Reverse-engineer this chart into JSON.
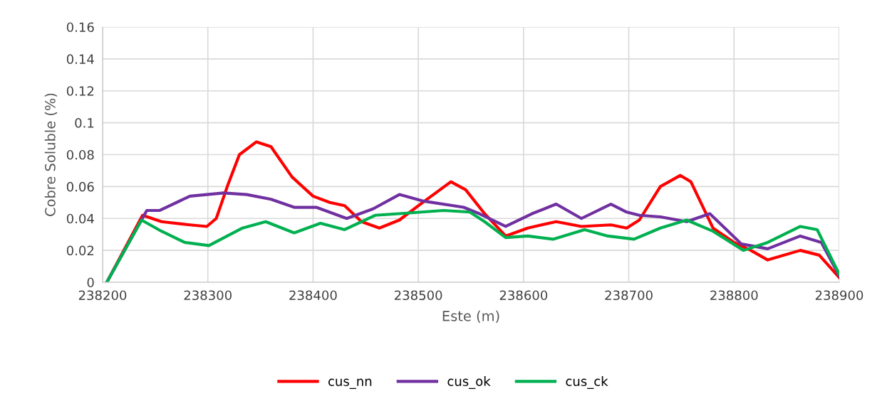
{
  "chart_data": {
    "type": "line",
    "xlabel": "Este (m)",
    "ylabel": "Cobre Soluble (%)",
    "xlim": [
      238200,
      238900
    ],
    "xticks": [
      238200,
      238300,
      238400,
      238500,
      238600,
      238700,
      238800,
      238900
    ],
    "ylim": [
      0,
      0.16
    ],
    "yticks": [
      0,
      0.02,
      0.04,
      0.06,
      0.08,
      0.1,
      0.12,
      0.14,
      0.16
    ],
    "grid": true,
    "legend": "bottom",
    "marker": "none",
    "line_style": "solid",
    "series": [
      {
        "name": "cus_nn",
        "color": "#ff0000",
        "x": [
          238204,
          238238,
          238256,
          238283,
          238299,
          238308,
          238319,
          238330,
          238346,
          238360,
          238380,
          238400,
          238416,
          238430,
          238446,
          238463,
          238482,
          238502,
          238531,
          238545,
          238563,
          238583,
          238604,
          238631,
          238655,
          238683,
          238698,
          238710,
          238730,
          238749,
          238759,
          238780,
          238800,
          238816,
          238832,
          238863,
          238881,
          238900
        ],
        "values": [
          0,
          0.042,
          0.038,
          0.036,
          0.035,
          0.04,
          0.061,
          0.08,
          0.088,
          0.085,
          0.066,
          0.054,
          0.05,
          0.048,
          0.038,
          0.034,
          0.039,
          0.049,
          0.063,
          0.058,
          0.043,
          0.029,
          0.034,
          0.038,
          0.035,
          0.036,
          0.034,
          0.039,
          0.06,
          0.067,
          0.063,
          0.034,
          0.025,
          0.02,
          0.014,
          0.02,
          0.017,
          0.003
        ]
      },
      {
        "name": "cus_ok",
        "color": "#7030a0",
        "x": [
          238204,
          238242,
          238254,
          238283,
          238315,
          238337,
          238360,
          238382,
          238403,
          238432,
          238457,
          238482,
          238504,
          238543,
          238558,
          238583,
          238608,
          238631,
          238655,
          238683,
          238698,
          238710,
          238730,
          238755,
          238777,
          238807,
          238832,
          238863,
          238883,
          238900
        ],
        "values": [
          0,
          0.045,
          0.045,
          0.054,
          0.056,
          0.055,
          0.052,
          0.047,
          0.047,
          0.04,
          0.046,
          0.055,
          0.051,
          0.047,
          0.043,
          0.035,
          0.043,
          0.049,
          0.04,
          0.049,
          0.044,
          0.042,
          0.041,
          0.038,
          0.043,
          0.024,
          0.021,
          0.029,
          0.025,
          0.004
        ]
      },
      {
        "name": "cus_ck",
        "color": "#00b050",
        "x": [
          238204,
          238237,
          238256,
          238278,
          238301,
          238333,
          238355,
          238382,
          238407,
          238430,
          238459,
          238482,
          238524,
          238549,
          238563,
          238583,
          238604,
          238628,
          238658,
          238680,
          238705,
          238730,
          238755,
          238780,
          238809,
          238832,
          238863,
          238879,
          238900
        ],
        "values": [
          0,
          0.039,
          0.032,
          0.025,
          0.023,
          0.034,
          0.038,
          0.031,
          0.037,
          0.033,
          0.042,
          0.043,
          0.045,
          0.044,
          0.038,
          0.028,
          0.029,
          0.027,
          0.033,
          0.029,
          0.027,
          0.034,
          0.039,
          0.032,
          0.02,
          0.025,
          0.035,
          0.033,
          0.005
        ]
      }
    ]
  }
}
